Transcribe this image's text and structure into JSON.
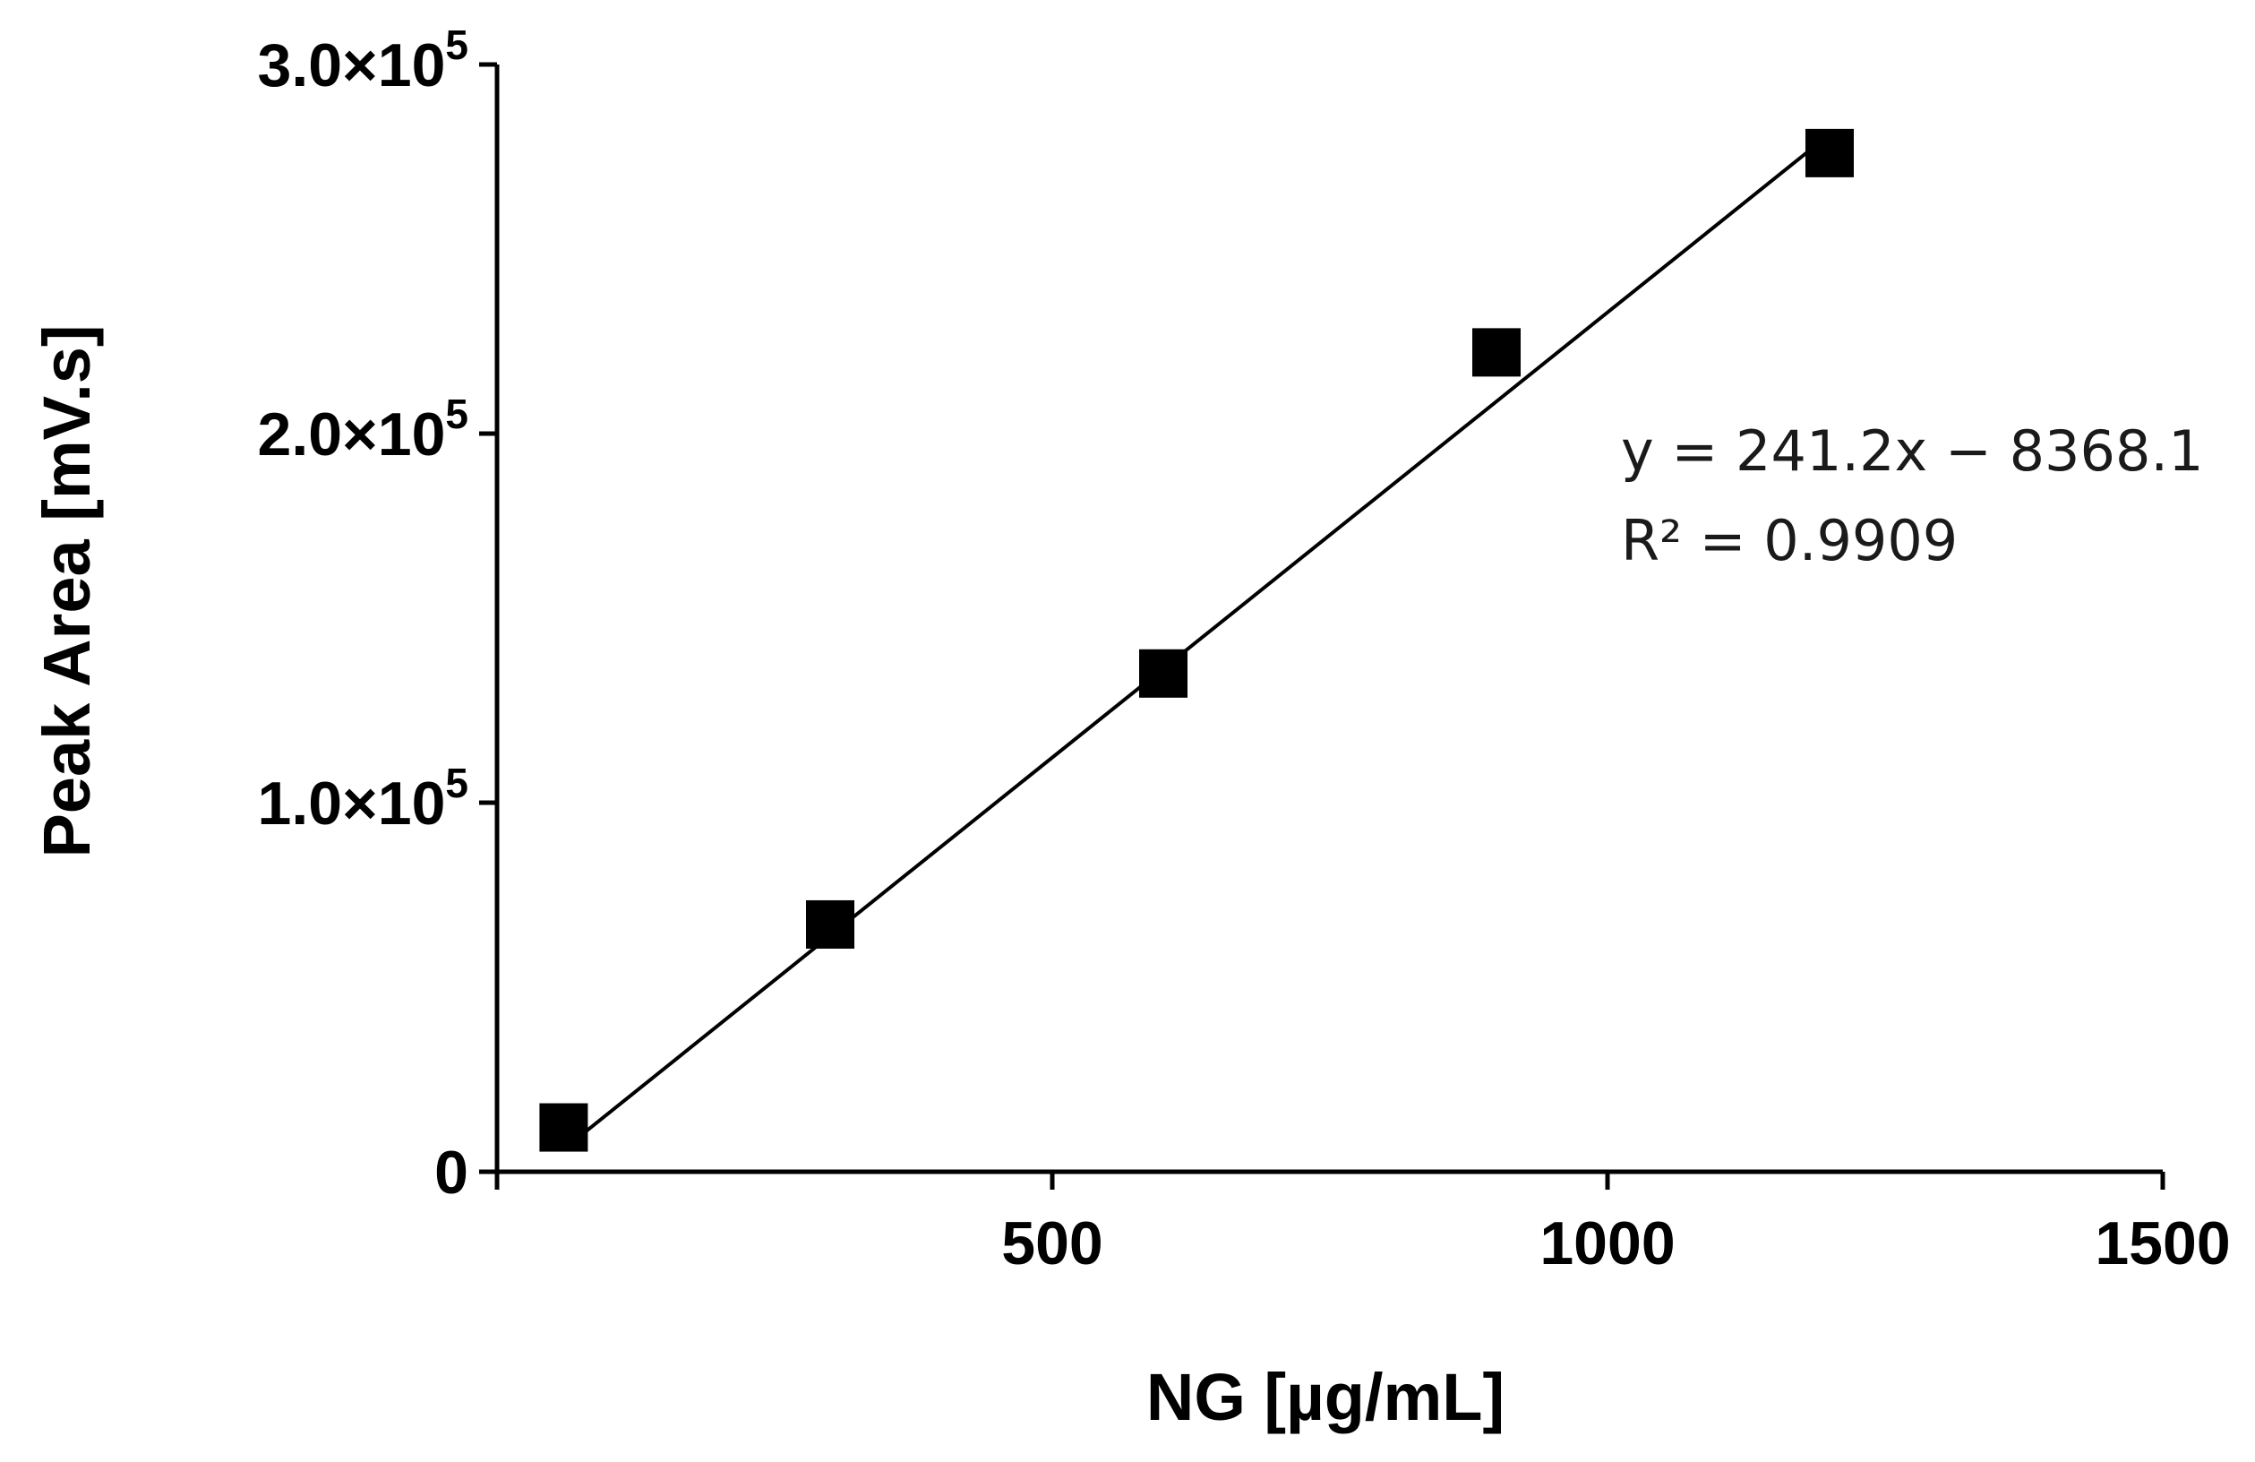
{
  "chart_data": {
    "type": "scatter",
    "title": "",
    "xlabel": "NG [µg/mL]",
    "ylabel": "Peak Area [mV.s]",
    "xlim": [
      0,
      1500
    ],
    "ylim": [
      0,
      300000
    ],
    "x_ticks": [
      {
        "value": 500,
        "label": "500"
      },
      {
        "value": 1000,
        "label": "1000"
      },
      {
        "value": 1500,
        "label": "1500"
      }
    ],
    "y_ticks": [
      {
        "value": 0,
        "label": "0"
      },
      {
        "value": 100000,
        "label": "1.0×10",
        "exp": "5"
      },
      {
        "value": 200000,
        "label": "2.0×10",
        "exp": "5"
      },
      {
        "value": 300000,
        "label": "3.0×10",
        "exp": "5"
      }
    ],
    "grid": false,
    "series": [
      {
        "name": "NG",
        "marker": "square",
        "color": "#000000",
        "points": [
          {
            "x": 60,
            "y": 12000
          },
          {
            "x": 300,
            "y": 67000
          },
          {
            "x": 600,
            "y": 135000
          },
          {
            "x": 900,
            "y": 222000
          },
          {
            "x": 1200,
            "y": 276000
          }
        ]
      }
    ],
    "trendline": {
      "slope": 241.2,
      "intercept": -8368.1,
      "x_range": [
        60,
        1200
      ]
    },
    "annotations": [
      "y = 241.2x − 8368.1",
      "R² = 0.9909"
    ]
  }
}
